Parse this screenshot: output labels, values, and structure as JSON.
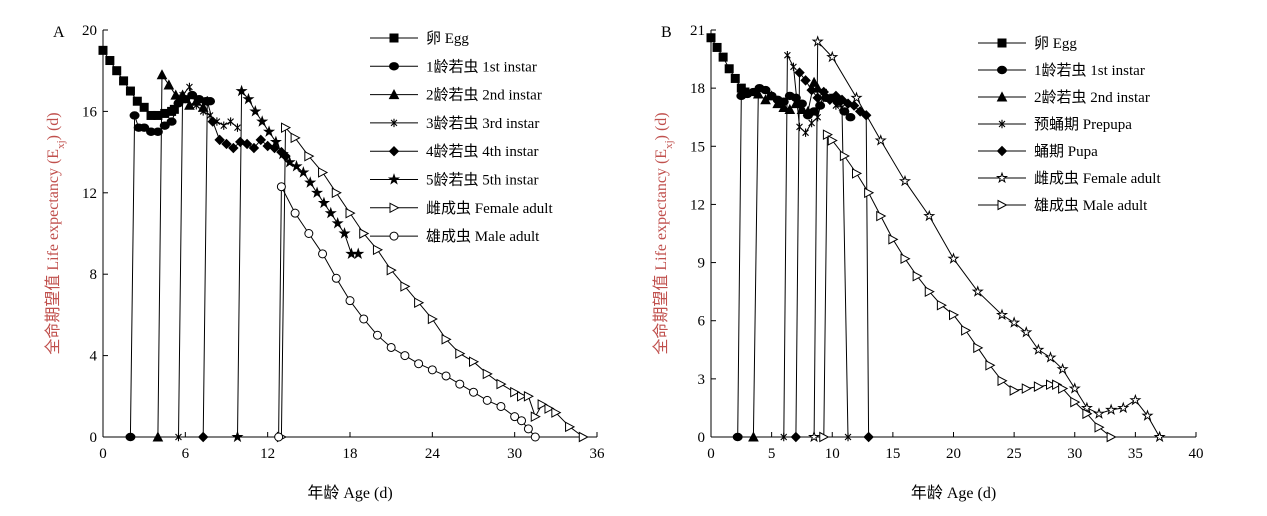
{
  "chart_data": [
    {
      "panel_label": "A",
      "type": "line",
      "ylabel": "全命期望值 Life expectancy (E",
      "ylabel_sub": "xj",
      "ylabel_tail": ") (d)",
      "xlabel": "年龄 Age (d)",
      "xlim": [
        0,
        36
      ],
      "ylim": [
        0,
        20
      ],
      "xticks": [
        0,
        6,
        12,
        18,
        24,
        30,
        36
      ],
      "yticks": [
        0,
        4,
        8,
        12,
        16,
        20
      ],
      "grid": false,
      "legend_position": "top-right",
      "series": [
        {
          "name": "卵 Egg",
          "marker": "square",
          "x": [
            0,
            0.5,
            1,
            1.5,
            2,
            2.5,
            3,
            3.5,
            4,
            4.5,
            5,
            5.2
          ],
          "y": [
            19,
            18.5,
            18,
            17.5,
            17,
            16.5,
            16.2,
            15.8,
            15.8,
            15.9,
            16,
            16.1
          ]
        },
        {
          "name": "1龄若虫 1st instar",
          "marker": "circle",
          "x": [
            2,
            2.3,
            2.6,
            3,
            3.5,
            4,
            4.5,
            5,
            5.5,
            6,
            6.5,
            7,
            7.5,
            7.8
          ],
          "y": [
            0,
            15.8,
            15.2,
            15.2,
            15,
            15,
            15.3,
            15.5,
            16.4,
            16.6,
            16.8,
            16.6,
            16.5,
            16.5
          ]
        },
        {
          "name": "2龄若虫 2nd instar",
          "marker": "triangle-up",
          "x": [
            4,
            4.3,
            4.8,
            5.3,
            5.8,
            6.3,
            6.8,
            7.3
          ],
          "y": [
            0,
            17.8,
            17.3,
            16.8,
            16.8,
            16.3,
            16.5,
            16.2
          ]
        },
        {
          "name": "3龄若虫 3rd instar",
          "marker": "asterisk",
          "x": [
            5.5,
            5.8,
            6.3,
            6.8,
            7.3,
            7.8,
            8.3,
            8.8,
            9.3,
            9.8
          ],
          "y": [
            0,
            16.8,
            17.2,
            16.3,
            16,
            15.8,
            15.5,
            15.3,
            15.5,
            15.2
          ]
        },
        {
          "name": "4龄若虫 4th instar",
          "marker": "diamond",
          "x": [
            7.3,
            7.6,
            8,
            8.5,
            9,
            9.5,
            10,
            10.5,
            11,
            11.5,
            12,
            12.5,
            13,
            13.3
          ],
          "y": [
            0,
            16.5,
            15.5,
            14.6,
            14.4,
            14.2,
            14.5,
            14.4,
            14.2,
            14.6,
            14.3,
            14.2,
            14,
            13.8
          ]
        },
        {
          "name": "5龄若虫 5th instar",
          "marker": "star",
          "x": [
            9.8,
            10.1,
            10.6,
            11.1,
            11.6,
            12.1,
            12.6,
            13.1,
            13.6,
            14.1,
            14.6,
            15.1,
            15.6,
            16.1,
            16.6,
            17.1,
            17.6,
            18.1,
            18.6
          ],
          "y": [
            0,
            17,
            16.6,
            16,
            15.5,
            15,
            14.5,
            13.9,
            13.5,
            13.3,
            13,
            12.5,
            12,
            11.5,
            11,
            10.5,
            10,
            9,
            9
          ]
        },
        {
          "name": "雌成虫 Female adult",
          "marker": "triangle-right",
          "x": [
            13,
            13.3,
            14,
            15,
            16,
            17,
            18,
            19,
            20,
            21,
            22,
            23,
            24,
            25,
            26,
            27,
            28,
            29,
            30,
            30.5,
            31,
            31.5,
            32,
            32.5,
            33,
            34,
            35
          ],
          "y": [
            0,
            15.2,
            14.7,
            13.8,
            13,
            12,
            11,
            10,
            9.2,
            8.2,
            7.4,
            6.6,
            5.8,
            4.8,
            4.1,
            3.7,
            3.1,
            2.6,
            2.2,
            2,
            2,
            1,
            1.6,
            1.4,
            1.2,
            0.5,
            0
          ]
        },
        {
          "name": "雄成虫 Male adult",
          "marker": "circle-open",
          "x": [
            12.8,
            13,
            14,
            15,
            16,
            17,
            18,
            19,
            20,
            21,
            22,
            23,
            24,
            25,
            26,
            27,
            28,
            29,
            30,
            30.5,
            31,
            31.5
          ],
          "y": [
            0,
            12.3,
            11,
            10,
            9,
            7.8,
            6.7,
            5.8,
            5,
            4.4,
            4,
            3.6,
            3.3,
            3,
            2.6,
            2.2,
            1.8,
            1.5,
            1,
            0.8,
            0.4,
            0
          ]
        }
      ]
    },
    {
      "panel_label": "B",
      "type": "line",
      "ylabel": "全命期望值 Life expectancy (E",
      "ylabel_sub": "xj",
      "ylabel_tail": ") (d)",
      "xlabel": "年龄 Age (d)",
      "xlim": [
        0,
        40
      ],
      "ylim": [
        0,
        21
      ],
      "xticks": [
        0,
        5,
        10,
        15,
        20,
        25,
        30,
        35,
        40
      ],
      "yticks": [
        0,
        3,
        6,
        9,
        12,
        15,
        18,
        21
      ],
      "grid": false,
      "legend_position": "top-right",
      "series": [
        {
          "name": "卵 Egg",
          "marker": "square",
          "x": [
            0,
            0.5,
            1,
            1.5,
            2,
            2.5,
            2.8
          ],
          "y": [
            20.6,
            20.1,
            19.6,
            19,
            18.5,
            18,
            17.8
          ]
        },
        {
          "name": "1龄若虫 1st instar",
          "marker": "circle",
          "x": [
            2.2,
            2.5,
            3,
            3.5,
            4,
            4.5,
            5,
            5.5,
            6,
            6.5,
            7,
            7.5,
            8,
            8.5,
            9,
            9.5,
            10,
            10.5,
            11,
            11.5
          ],
          "y": [
            0,
            17.6,
            17.7,
            17.8,
            18,
            17.9,
            17.6,
            17.4,
            17.3,
            17.6,
            17.5,
            17.2,
            16.6,
            16.8,
            17.1,
            17.5,
            17.5,
            17.3,
            16.8,
            16.5
          ]
        },
        {
          "name": "2龄若虫 2nd instar",
          "marker": "triangle-up",
          "x": [
            3.5,
            3.9,
            4.5,
            5,
            5.5,
            6,
            6.5,
            7,
            7.5,
            8,
            8.5,
            8.8
          ],
          "y": [
            0,
            17.7,
            17.4,
            17.6,
            17.2,
            17,
            16.9,
            17.2,
            16.9,
            16.8,
            18.3,
            18
          ]
        },
        {
          "name": "预蛹期 Prepupa",
          "marker": "asterisk",
          "x": [
            6,
            6.3,
            6.8,
            7.3,
            7.8,
            8.3,
            8.8,
            9.3,
            9.8,
            10.3,
            10.8,
            11.3
          ],
          "y": [
            0,
            19.7,
            19.1,
            16,
            15.7,
            16.2,
            16.5,
            17.8,
            17.5,
            17.1,
            17,
            0
          ]
        },
        {
          "name": "蛹期 Pupa",
          "marker": "diamond",
          "x": [
            7,
            7.3,
            7.8,
            8.3,
            8.8,
            9.3,
            9.8,
            10.3,
            10.8,
            11.3,
            11.8,
            12.3,
            12.8,
            13
          ],
          "y": [
            0,
            18.8,
            18.4,
            17.9,
            17.5,
            17.8,
            17.4,
            17.6,
            17.4,
            17.2,
            17.1,
            16.8,
            16.6,
            0
          ]
        },
        {
          "name": "雌成虫 Female adult",
          "marker": "star-open",
          "x": [
            8.5,
            8.8,
            10,
            12,
            14,
            16,
            18,
            20,
            22,
            24,
            25,
            26,
            27,
            28,
            29,
            30,
            31,
            32,
            33,
            34,
            35,
            36,
            37
          ],
          "y": [
            0,
            20.4,
            19.6,
            17.5,
            15.3,
            13.2,
            11.4,
            9.2,
            7.5,
            6.3,
            5.9,
            5.4,
            4.5,
            4.1,
            3.5,
            2.5,
            1.5,
            1.2,
            1.4,
            1.5,
            1.9,
            1.1,
            0
          ]
        },
        {
          "name": "雄成虫 Male adult",
          "marker": "triangle-right",
          "x": [
            9.3,
            9.6,
            10,
            11,
            12,
            13,
            14,
            15,
            16,
            17,
            18,
            19,
            20,
            21,
            22,
            23,
            24,
            25,
            26,
            27,
            28,
            28.5,
            29,
            30,
            31,
            32,
            33
          ],
          "y": [
            0,
            15.6,
            15.3,
            14.5,
            13.6,
            12.6,
            11.4,
            10.2,
            9.2,
            8.3,
            7.5,
            6.8,
            6.3,
            5.5,
            4.6,
            3.7,
            2.9,
            2.4,
            2.5,
            2.6,
            2.7,
            2.7,
            2.5,
            1.8,
            1.2,
            0.5,
            0
          ]
        }
      ]
    }
  ]
}
